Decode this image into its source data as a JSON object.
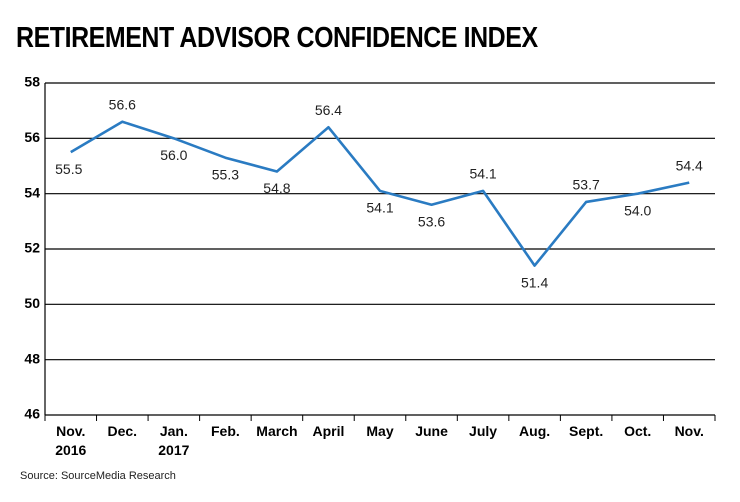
{
  "chart_data": {
    "type": "line",
    "title": "RETIREMENT ADVISOR CONFIDENCE INDEX",
    "categories": [
      "Nov. 2016",
      "Dec.",
      "Jan. 2017",
      "Feb.",
      "March",
      "April",
      "May",
      "June",
      "July",
      "Aug.",
      "Sept.",
      "Oct.",
      "Nov."
    ],
    "series": [
      {
        "name": "Retirement Advisor Confidence Index",
        "color": "#2a7bc2",
        "values": [
          55.5,
          56.6,
          56.0,
          55.3,
          54.8,
          56.4,
          54.1,
          53.6,
          54.1,
          51.4,
          53.7,
          54.0,
          54.4
        ],
        "value_labels": [
          "55.5",
          "56.6",
          "56.0",
          "55.3",
          "54.8",
          "56.4",
          "54.1",
          "53.6",
          "54.1",
          "51.4",
          "53.7",
          "54.0",
          "54.4"
        ]
      }
    ],
    "ylim": [
      46,
      58
    ],
    "yticks": [
      46,
      48,
      50,
      52,
      54,
      56,
      58
    ],
    "grid": true,
    "source": "Source: SourceMedia Research"
  }
}
